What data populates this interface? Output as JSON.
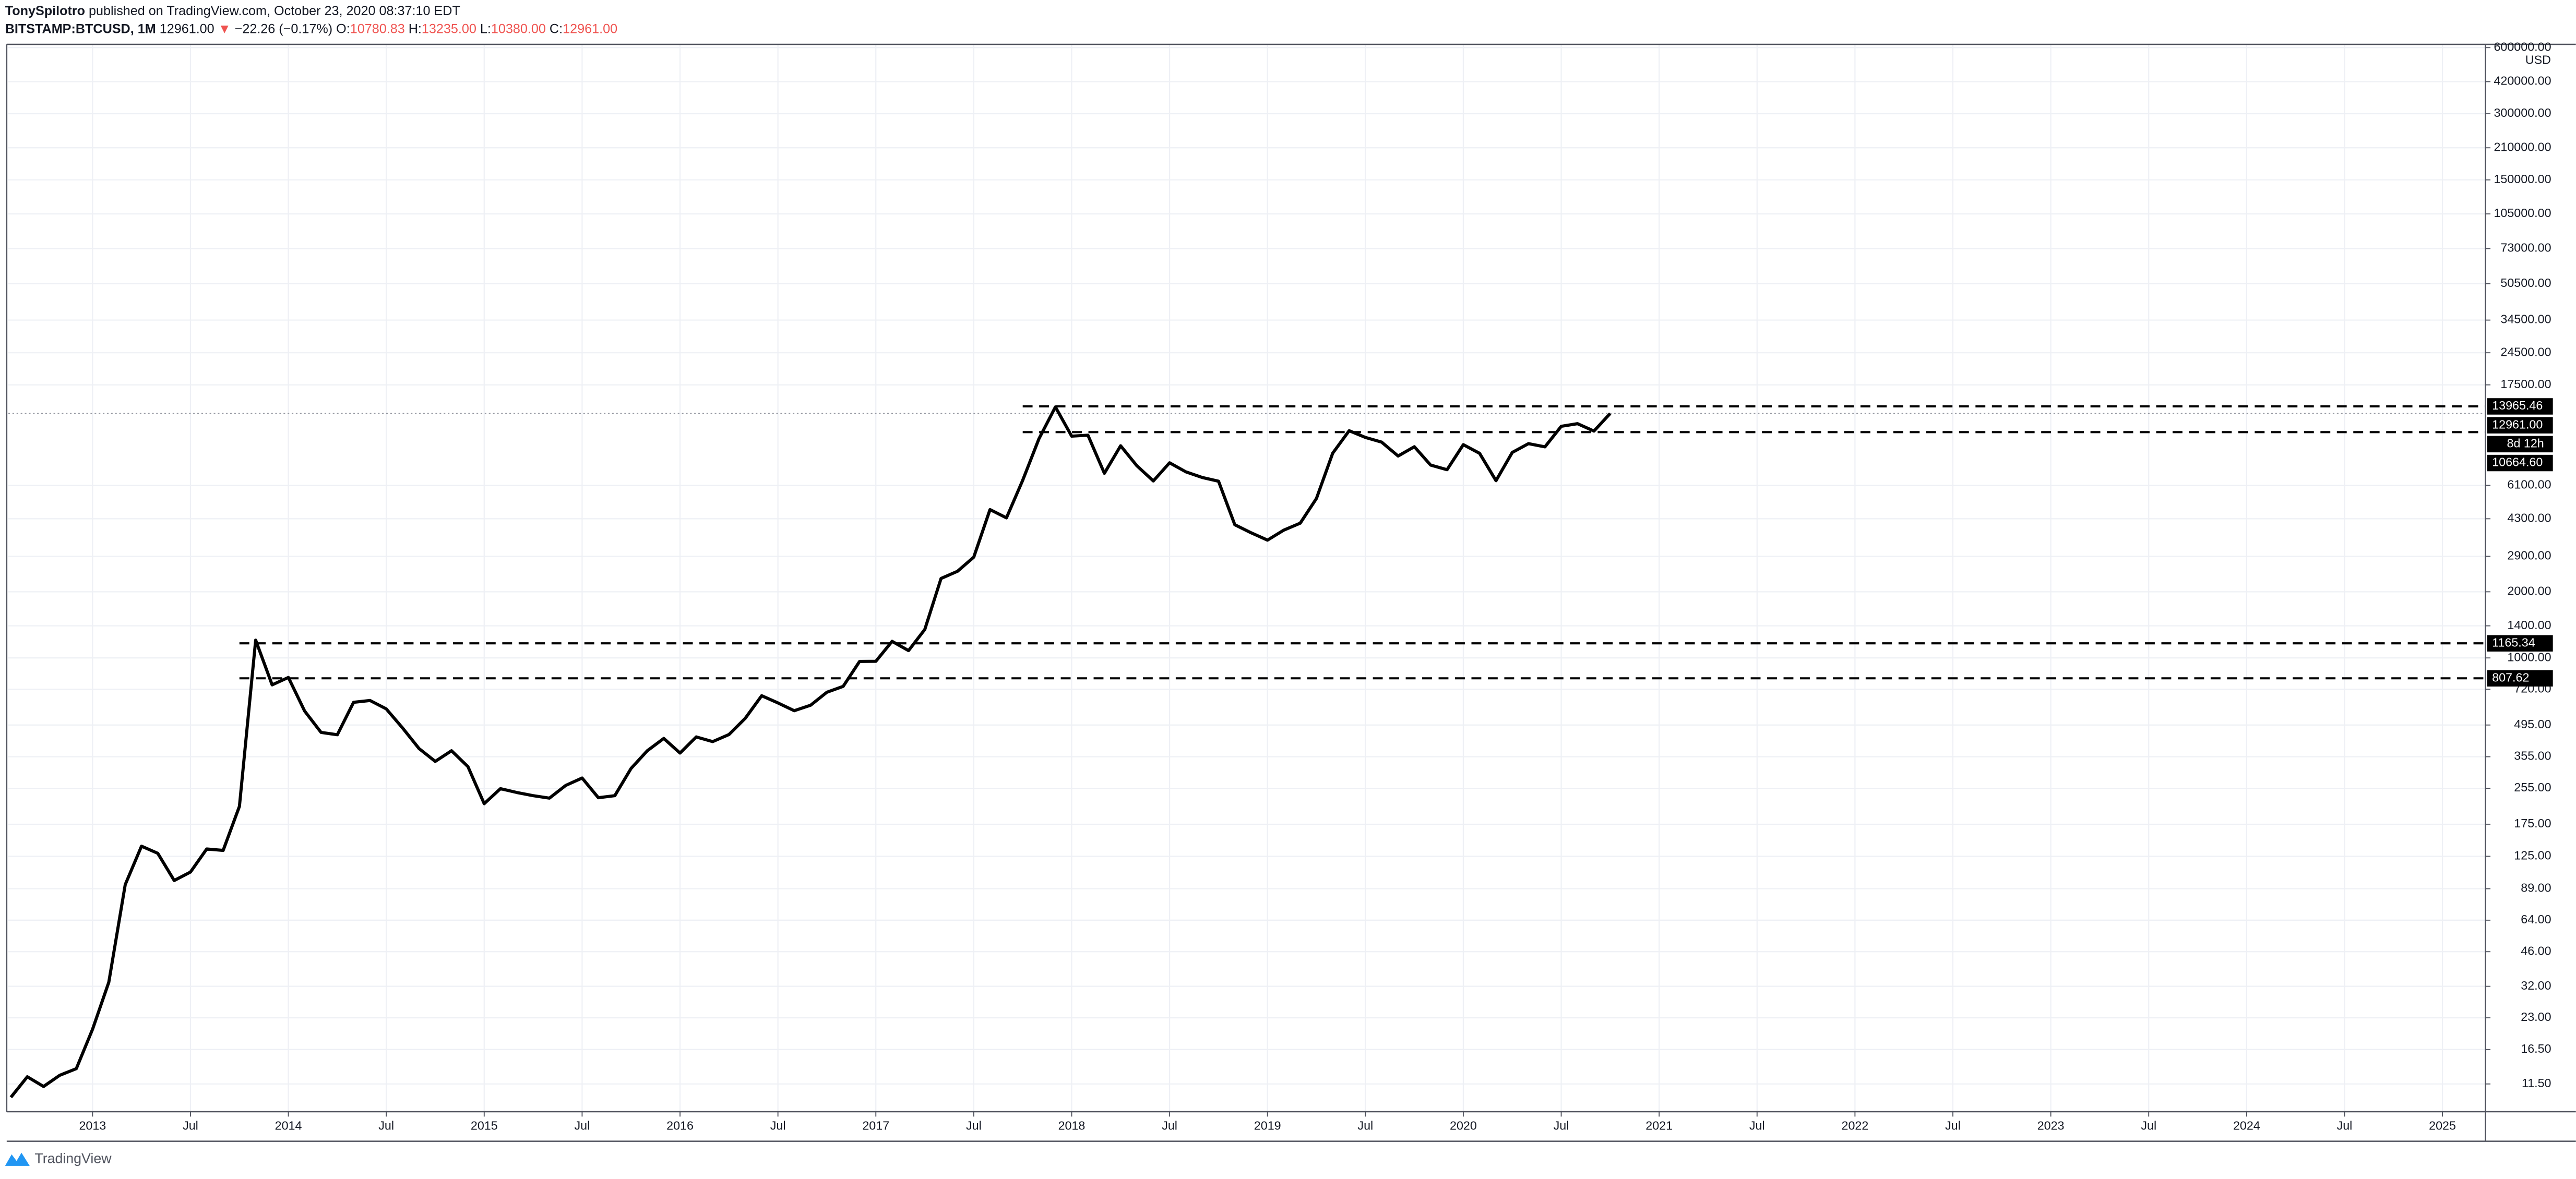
{
  "header": {
    "author": "TonySpilotro",
    "published": "published on TradingView.com, October 23, 2020 08:37:10 EDT",
    "symbol": "BITSTAMP:BTCUSD, 1M",
    "last": "12961.00",
    "arrow": "▼",
    "change": "−22.26 (−0.17%)",
    "ohlc": [
      {
        "key": "O:",
        "value": "10780.83"
      },
      {
        "key": "H:",
        "value": "13235.00"
      },
      {
        "key": "L:",
        "value": "10380.00"
      },
      {
        "key": "C:",
        "value": "12961.00"
      }
    ]
  },
  "chart_data": {
    "type": "line",
    "log_scale": true,
    "grid": true,
    "y_axis_unit": "USD",
    "xlim": [
      2012.57,
      2025.22
    ],
    "ylim": [
      8.6,
      621000
    ],
    "xticks": [
      2013,
      {
        "value": 2013.5,
        "label": "Jul"
      },
      2014,
      {
        "value": 2014.5,
        "label": "Jul"
      },
      2015,
      {
        "value": 2015.5,
        "label": "Jul"
      },
      2016,
      {
        "value": 2016.5,
        "label": "Jul"
      },
      2017,
      {
        "value": 2017.5,
        "label": "Jul"
      },
      2018,
      {
        "value": 2018.5,
        "label": "Jul"
      },
      2019,
      {
        "value": 2019.5,
        "label": "Jul"
      },
      2020,
      {
        "value": 2020.5,
        "label": "Jul"
      },
      2021,
      {
        "value": 2021.5,
        "label": "Jul"
      },
      2022,
      {
        "value": 2022.5,
        "label": "Jul"
      },
      2023,
      {
        "value": 2023.5,
        "label": "Jul"
      },
      2024,
      {
        "value": 2024.5,
        "label": "Jul"
      },
      2025
    ],
    "yticks": [
      {
        "value": 600000,
        "label": "600000.00"
      },
      {
        "value": 420000,
        "label": "420000.00"
      },
      {
        "value": 300000,
        "label": "300000.00"
      },
      {
        "value": 210000,
        "label": "210000.00"
      },
      {
        "value": 150000,
        "label": "150000.00"
      },
      {
        "value": 105000,
        "label": "105000.00"
      },
      {
        "value": 73000,
        "label": "73000.00"
      },
      {
        "value": 50500,
        "label": "50500.00"
      },
      {
        "value": 34500,
        "label": "34500.00"
      },
      {
        "value": 24500,
        "label": "24500.00"
      },
      {
        "value": 17500,
        "label": "17500.00"
      },
      {
        "value": 6100,
        "label": "6100.00"
      },
      {
        "value": 4300,
        "label": "4300.00"
      },
      {
        "value": 2900,
        "label": "2900.00"
      },
      {
        "value": 2000,
        "label": "2000.00"
      },
      {
        "value": 1400,
        "label": "1400.00"
      },
      {
        "value": 1000,
        "label": "1000.00"
      },
      {
        "value": 720,
        "label": "720.00"
      },
      {
        "value": 495,
        "label": "495.00"
      },
      {
        "value": 355,
        "label": "355.00"
      },
      {
        "value": 255,
        "label": "255.00"
      },
      {
        "value": 175,
        "label": "175.00"
      },
      {
        "value": 125,
        "label": "125.00"
      },
      {
        "value": 89,
        "label": "89.00"
      },
      {
        "value": 64,
        "label": "64.00"
      },
      {
        "value": 46,
        "label": "46.00"
      },
      {
        "value": 32,
        "label": "32.00"
      },
      {
        "value": 23,
        "label": "23.00"
      },
      {
        "value": 16.5,
        "label": "16.50"
      },
      {
        "value": 11.5,
        "label": "11.50"
      }
    ],
    "series": [
      {
        "color": "#000000",
        "x": [
          2012.583,
          2012.667,
          2012.75,
          2012.833,
          2012.917,
          2013,
          2013.083,
          2013.167,
          2013.25,
          2013.333,
          2013.417,
          2013.5,
          2013.583,
          2013.667,
          2013.75,
          2013.833,
          2013.917,
          2014,
          2014.083,
          2014.167,
          2014.25,
          2014.333,
          2014.417,
          2014.5,
          2014.583,
          2014.667,
          2014.75,
          2014.833,
          2014.917,
          2015,
          2015.083,
          2015.167,
          2015.25,
          2015.333,
          2015.417,
          2015.5,
          2015.583,
          2015.667,
          2015.75,
          2015.833,
          2015.917,
          2016,
          2016.083,
          2016.167,
          2016.25,
          2016.333,
          2016.417,
          2016.5,
          2016.583,
          2016.667,
          2016.75,
          2016.833,
          2016.917,
          2017,
          2017.083,
          2017.167,
          2017.25,
          2017.333,
          2017.417,
          2017.5,
          2017.583,
          2017.667,
          2017.75,
          2017.833,
          2017.917,
          2018,
          2018.083,
          2018.167,
          2018.25,
          2018.333,
          2018.417,
          2018.5,
          2018.583,
          2018.667,
          2018.75,
          2018.833,
          2018.917,
          2019,
          2019.083,
          2019.167,
          2019.25,
          2019.333,
          2019.417,
          2019.5,
          2019.583,
          2019.667,
          2019.75,
          2019.833,
          2019.917,
          2020,
          2020.083,
          2020.167,
          2020.25,
          2020.333,
          2020.417,
          2020.5,
          2020.583,
          2020.667,
          2020.75
        ],
        "values": [
          10.0,
          12.4,
          11.2,
          12.6,
          13.5,
          20.4,
          33.4,
          93,
          139,
          129,
          97,
          106,
          135,
          133,
          211,
          1205,
          754,
          815,
          573,
          458,
          447,
          628,
          640,
          586,
          480,
          387,
          338,
          378,
          320,
          217,
          254,
          244,
          236,
          230,
          263,
          284,
          231,
          236,
          314,
          378,
          430,
          369,
          437,
          416,
          448,
          531,
          673,
          624,
          575,
          609,
          698,
          742,
          964,
          965,
          1190,
          1080,
          1348,
          2300,
          2480,
          2875,
          4735,
          4340,
          6440,
          9947,
          13880,
          10221,
          10326,
          6926,
          9240,
          7494,
          6391,
          7729,
          7033,
          6626,
          6372,
          4040,
          3710,
          3437,
          3816,
          4104,
          5320,
          8550,
          10820,
          10085,
          9600,
          8300,
          9150,
          7550,
          7190,
          9350,
          8540,
          6410,
          8620,
          9450,
          9140,
          11330,
          11650,
          10780,
          12961
        ]
      }
    ],
    "levels": [
      {
        "value": 13965.46,
        "from": 2017.75
      },
      {
        "value": {
          "value": 10664.6,
          "label": "10664.60"
        },
        "from": 2017.75
      },
      {
        "value": 1165.34,
        "from": 2013.75
      },
      {
        "value": 807.62,
        "from": 2013.75
      }
    ],
    "last_price": {
      "value": 12961,
      "label": "12961.00"
    },
    "countdown": "8d 12h"
  },
  "footer": {
    "brand": "TradingView"
  }
}
